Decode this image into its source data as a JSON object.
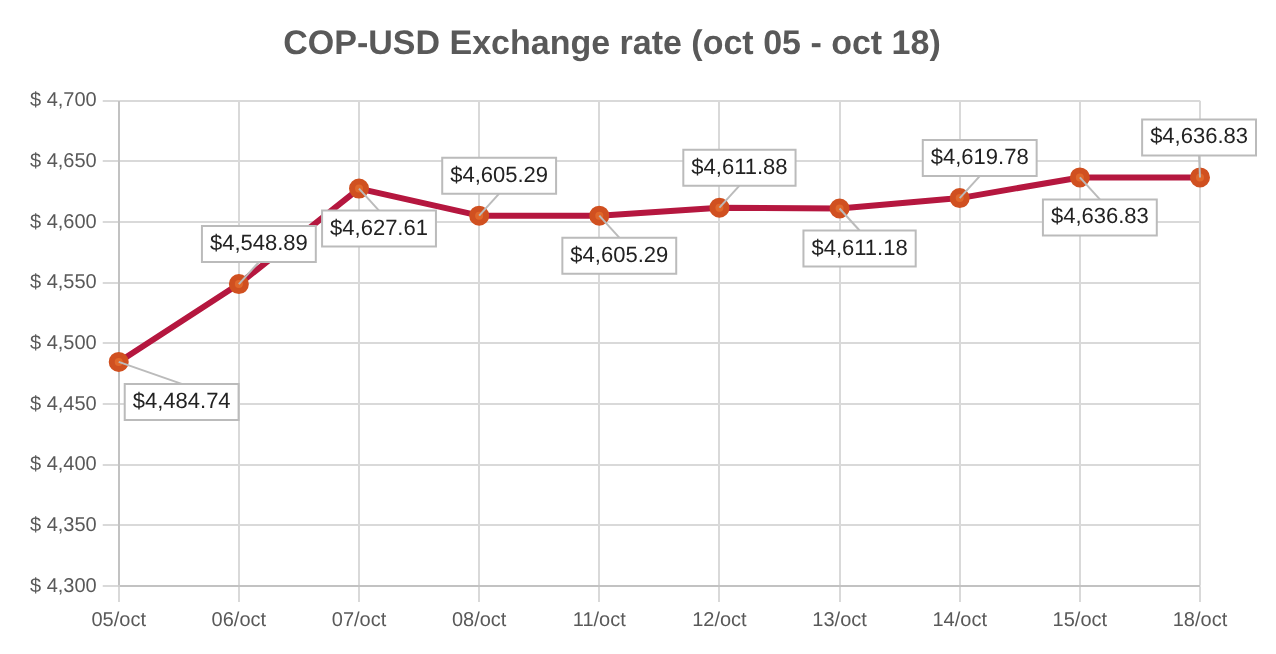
{
  "chart_data": {
    "type": "line",
    "title": "COP-USD Exchange rate (oct 05 - oct 18)",
    "categories": [
      "05/oct",
      "06/oct",
      "07/oct",
      "08/oct",
      "11/oct",
      "12/oct",
      "13/oct",
      "14/oct",
      "15/oct",
      "18/oct"
    ],
    "series": [
      {
        "color": "#b5173f",
        "values": [
          4484.74,
          4548.89,
          4627.61,
          4605.29,
          4605.29,
          4611.88,
          4611.18,
          4619.78,
          4636.83,
          4636.83
        ],
        "value_labels": [
          "$4,484.74",
          "$4,548.89",
          "$4,627.61",
          "$4,605.29",
          "$4,605.29",
          "$4,611.88",
          "$4,611.18",
          "$4,619.78",
          "$4,636.83",
          "$4,636.83"
        ]
      }
    ],
    "ylim": [
      4300,
      4700
    ],
    "yticks": [
      {
        "value": 4300,
        "label": "$ 4,300"
      },
      {
        "value": 4350,
        "label": "$ 4,350"
      },
      {
        "value": 4400,
        "label": "$ 4,400"
      },
      {
        "value": 4450,
        "label": "$ 4,450"
      },
      {
        "value": 4500,
        "label": "$ 4,500"
      },
      {
        "value": 4550,
        "label": "$ 4,550"
      },
      {
        "value": 4600,
        "label": "$ 4,600"
      },
      {
        "value": 4650,
        "label": "$ 4,650"
      },
      {
        "value": 4700,
        "label": "$ 4,700"
      }
    ],
    "grid": true,
    "legend": false,
    "marker": "circle",
    "line_style": "solid"
  }
}
